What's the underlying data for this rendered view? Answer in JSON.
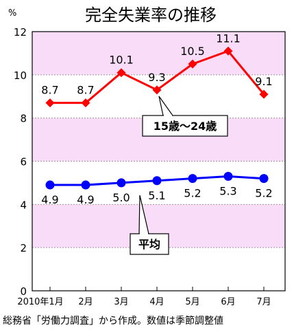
{
  "title": "完全失業率の推移",
  "y_unit": "%",
  "source_note": "総務省「労働力調査」から作成。数値は季節調整値",
  "colors": {
    "band": "#f8dcf8",
    "youth": "#ff0000",
    "average": "#0000ff"
  },
  "chart_data": {
    "type": "line",
    "categories": [
      "2010年1月",
      "2月",
      "3月",
      "4月",
      "5月",
      "6月",
      "7月"
    ],
    "ylim": [
      0,
      12
    ],
    "yticks": [
      0,
      2,
      4,
      6,
      8,
      10,
      12
    ],
    "grid": true,
    "series": [
      {
        "name": "15歳～24歳",
        "color": "#ff0000",
        "marker": "diamond",
        "values": [
          8.7,
          8.7,
          10.1,
          9.3,
          10.5,
          11.1,
          9.1
        ],
        "labels": [
          "8.7",
          "8.7",
          "10.1",
          "9.3",
          "10.5",
          "11.1",
          "9.1"
        ]
      },
      {
        "name": "平均",
        "color": "#0000ff",
        "marker": "circle",
        "values": [
          4.9,
          4.9,
          5.0,
          5.1,
          5.2,
          5.3,
          5.2
        ],
        "labels": [
          "4.9",
          "4.9",
          "5.0",
          "5.1",
          "5.2",
          "5.3",
          "5.2"
        ]
      }
    ]
  }
}
